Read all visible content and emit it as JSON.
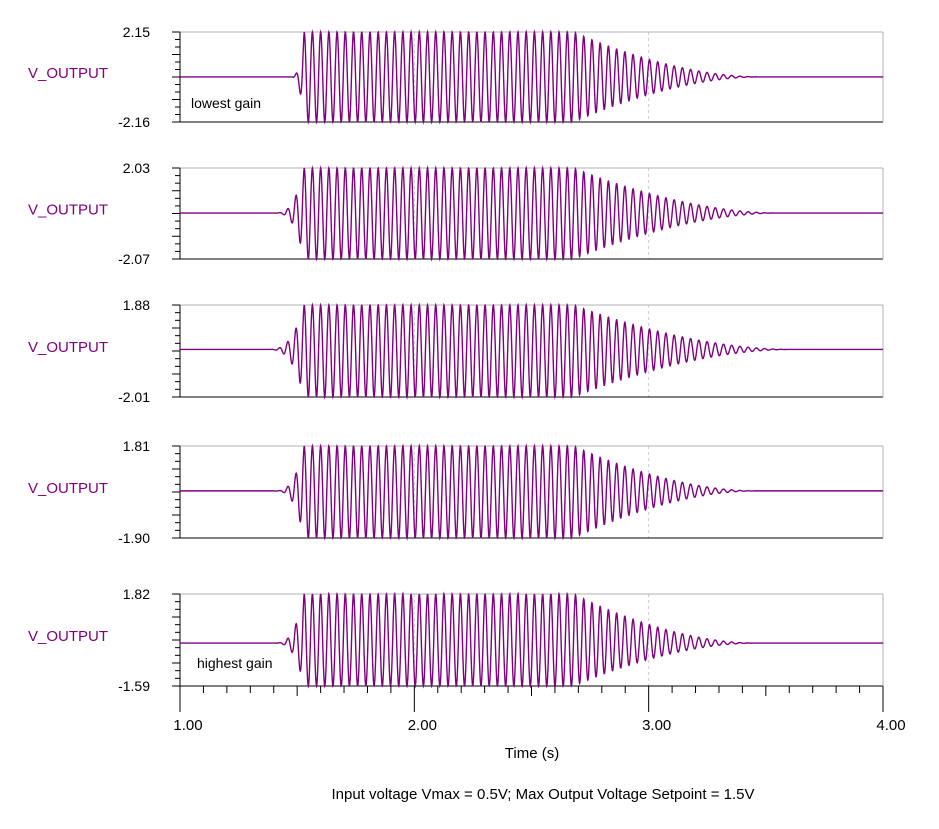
{
  "chart_data": {
    "type": "line",
    "xlabel": "Time (s)",
    "xlim": [
      1.0,
      4.0
    ],
    "xtick_labels": [
      "1.00",
      "2.00",
      "3.00",
      "4.00"
    ],
    "xticks": [
      1.0,
      2.0,
      3.0,
      4.0
    ],
    "caption": "Input voltage Vmax = 0.5V;    Max Output Voltage Setpoint = 1.5V",
    "line_color": "#800080",
    "grid": "dashed vertical at major x ticks",
    "subplots": [
      {
        "ylabel": "V_OUTPUT",
        "ymax_label": "2.15",
        "ymin_label": "-2.16",
        "ylim": [
          -2.16,
          2.15
        ],
        "annotation": "lowest gain",
        "signal": {
          "onset": 1.47,
          "first_peak_time": 1.53,
          "peak": 2.15,
          "trough": -2.16,
          "sustain_end": 2.68,
          "decay_end": 3.47,
          "frequency_hz": 28.5
        }
      },
      {
        "ylabel": "V_OUTPUT",
        "ymax_label": "2.03",
        "ymin_label": "-2.07",
        "ylim": [
          -2.07,
          2.03
        ],
        "annotation": "",
        "signal": {
          "onset": 1.4,
          "first_peak_time": 1.53,
          "peak": 2.03,
          "trough": -2.07,
          "sustain_end": 2.68,
          "decay_end": 3.55,
          "frequency_hz": 28.5
        }
      },
      {
        "ylabel": "V_OUTPUT",
        "ymax_label": "1.88",
        "ymin_label": "-2.01",
        "ylim": [
          -2.01,
          1.88
        ],
        "annotation": "",
        "signal": {
          "onset": 1.37,
          "first_peak_time": 1.53,
          "peak": 1.88,
          "trough": -2.01,
          "sustain_end": 2.68,
          "decay_end": 3.6,
          "frequency_hz": 28.5
        }
      },
      {
        "ylabel": "V_OUTPUT",
        "ymax_label": "1.81",
        "ymin_label": "-1.90",
        "ylim": [
          -1.9,
          1.81
        ],
        "annotation": "",
        "signal": {
          "onset": 1.4,
          "first_peak_time": 1.53,
          "peak": 1.81,
          "trough": -1.9,
          "sustain_end": 2.68,
          "decay_end": 3.45,
          "frequency_hz": 28.5
        }
      },
      {
        "ylabel": "V_OUTPUT",
        "ymax_label": "1.82",
        "ymin_label": "-1.59",
        "ylim": [
          -1.59,
          1.82
        ],
        "annotation": "highest gain",
        "signal": {
          "onset": 1.4,
          "first_peak_time": 1.53,
          "peak": 1.82,
          "trough": -1.59,
          "sustain_end": 2.68,
          "decay_end": 3.45,
          "frequency_hz": 28.5
        }
      }
    ]
  }
}
